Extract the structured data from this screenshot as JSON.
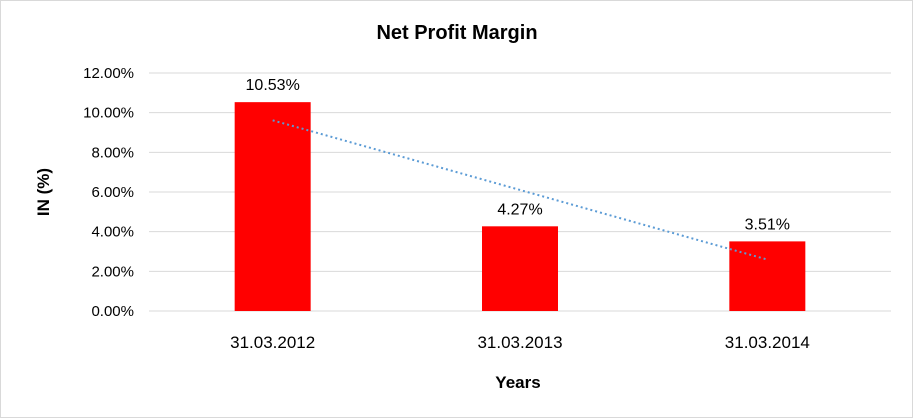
{
  "chart_data": {
    "type": "bar",
    "title": "Net Profit Margin",
    "xlabel": "Years",
    "ylabel": "IN (%)",
    "categories": [
      "31.03.2012",
      "31.03.2013",
      "31.03.2014"
    ],
    "values": [
      10.53,
      4.27,
      3.51
    ],
    "data_labels": [
      "10.53%",
      "4.27%",
      "3.51%"
    ],
    "ylim": [
      0,
      12
    ],
    "yticks": [
      0,
      2,
      4,
      6,
      8,
      10,
      12
    ],
    "ytick_labels": [
      "0.00%",
      "2.00%",
      "4.00%",
      "6.00%",
      "8.00%",
      "10.00%",
      "12.00%"
    ],
    "grid": true,
    "trendline": "linear",
    "colors": {
      "bar": "#ff0000",
      "gridline": "#d9d9d9",
      "trendline": "#5b9bd5"
    }
  }
}
